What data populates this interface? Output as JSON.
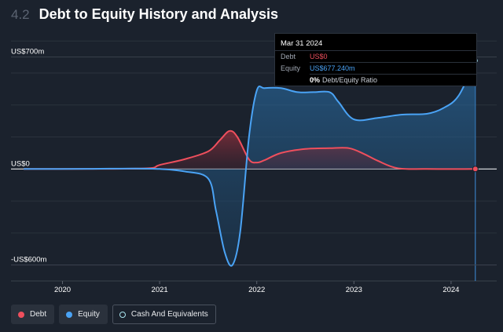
{
  "header": {
    "section_number": "4.2",
    "title": "Debt to Equity History and Analysis"
  },
  "tooltip": {
    "date": "Mar 31 2024",
    "debt_label": "Debt",
    "debt_value": "US$0",
    "equity_label": "Equity",
    "equity_value": "US$677.240m",
    "ratio_value": "0%",
    "ratio_label": "Debt/Equity Ratio"
  },
  "legend": [
    {
      "label": "Debt",
      "color": "#ef4f5d"
    },
    {
      "label": "Equity",
      "color": "#4aa3f5"
    },
    {
      "label": "Cash And Equivalents",
      "color": "#a9e5ef"
    }
  ],
  "chart_data": {
    "type": "area",
    "x_unit": "year",
    "xlim": [
      2019.47,
      2024.47
    ],
    "ylim": [
      -700,
      850
    ],
    "y_ticks": [
      {
        "value": 700,
        "label": "US$700m"
      },
      {
        "value": 0,
        "label": "US$0"
      },
      {
        "value": -600,
        "label": "-US$600m"
      }
    ],
    "x_ticks": [
      {
        "value": 2020,
        "label": "2020"
      },
      {
        "value": 2021,
        "label": "2021"
      },
      {
        "value": 2022,
        "label": "2022"
      },
      {
        "value": 2023,
        "label": "2023"
      },
      {
        "value": 2024,
        "label": "2024"
      }
    ],
    "grid": true,
    "series": [
      {
        "name": "Debt",
        "color": "#ef4f5d",
        "points": [
          [
            2019.6,
            0
          ],
          [
            2020.5,
            1
          ],
          [
            2020.9,
            5
          ],
          [
            2021.0,
            25
          ],
          [
            2021.25,
            60
          ],
          [
            2021.5,
            110
          ],
          [
            2021.62,
            180
          ],
          [
            2021.72,
            238
          ],
          [
            2021.8,
            200
          ],
          [
            2021.92,
            60
          ],
          [
            2022.0,
            40
          ],
          [
            2022.08,
            55
          ],
          [
            2022.25,
            100
          ],
          [
            2022.5,
            125
          ],
          [
            2022.75,
            130
          ],
          [
            2022.95,
            130
          ],
          [
            2023.1,
            95
          ],
          [
            2023.25,
            50
          ],
          [
            2023.45,
            5
          ],
          [
            2023.75,
            0
          ],
          [
            2024.25,
            0
          ]
        ]
      },
      {
        "name": "Equity",
        "color": "#4aa3f5",
        "points": [
          [
            2019.6,
            0
          ],
          [
            2020.25,
            1
          ],
          [
            2020.75,
            3
          ],
          [
            2021.0,
            0
          ],
          [
            2021.25,
            -15
          ],
          [
            2021.5,
            -60
          ],
          [
            2021.58,
            -260
          ],
          [
            2021.67,
            -520
          ],
          [
            2021.75,
            -600
          ],
          [
            2021.83,
            -390
          ],
          [
            2021.92,
            200
          ],
          [
            2022.0,
            490
          ],
          [
            2022.08,
            505
          ],
          [
            2022.25,
            505
          ],
          [
            2022.42,
            480
          ],
          [
            2022.58,
            480
          ],
          [
            2022.75,
            480
          ],
          [
            2022.84,
            420
          ],
          [
            2023.0,
            310
          ],
          [
            2023.25,
            320
          ],
          [
            2023.5,
            340
          ],
          [
            2023.75,
            345
          ],
          [
            2023.92,
            380
          ],
          [
            2024.08,
            460
          ],
          [
            2024.25,
            677
          ]
        ]
      }
    ],
    "highlight_x": 2024.25
  }
}
